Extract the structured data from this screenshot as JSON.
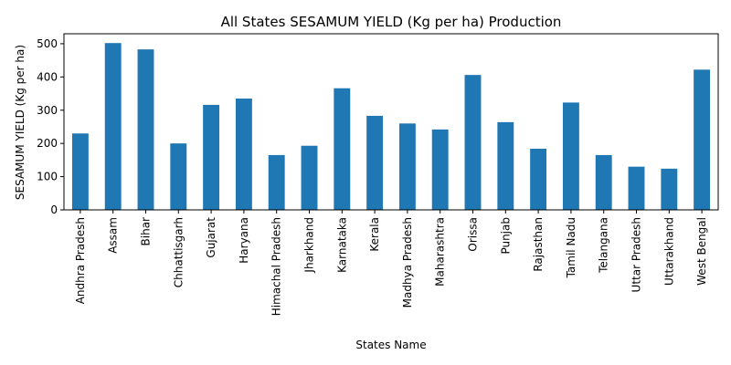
{
  "chart_data": {
    "type": "bar",
    "title": "All States SESAMUM YIELD (Kg per ha) Production",
    "xlabel": "States Name",
    "ylabel": "SESAMUM YIELD (Kg per ha)",
    "ylim": [
      0,
      530
    ],
    "yticks": [
      0,
      100,
      200,
      300,
      400,
      500
    ],
    "grid": false,
    "legend": "none",
    "bar_color": "#1f77b4",
    "categories": [
      "Andhra Pradesh",
      "Assam",
      "Bihar",
      "Chhattisgarh",
      "Gujarat",
      "Haryana",
      "Himachal Pradesh",
      "Jharkhand",
      "Karnataka",
      "Kerala",
      "Madhya Pradesh",
      "Maharashtra",
      "Orissa",
      "Punjab",
      "Rajasthan",
      "Tamil Nadu",
      "Telangana",
      "Uttar Pradesh",
      "Uttarakhand",
      "West Bengal"
    ],
    "values": [
      230,
      502,
      483,
      200,
      316,
      335,
      165,
      193,
      366,
      283,
      260,
      242,
      406,
      264,
      184,
      323,
      165,
      130,
      124,
      422
    ]
  }
}
